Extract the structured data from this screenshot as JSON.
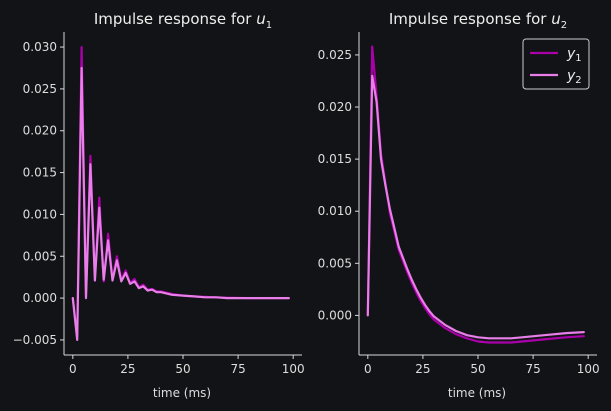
{
  "colors": {
    "y1": "#aa00aa",
    "y2": "#e87ee8",
    "background": "#121316",
    "axis": "#d8d8d8"
  },
  "chart_data": [
    {
      "type": "line",
      "title": "Impulse response for u1",
      "title_text": "Impulse response for ",
      "title_var": "u",
      "title_sub": "1",
      "xlabel": "time (ms)",
      "ylabel": "",
      "xlim": [
        -4,
        104
      ],
      "ylim": [
        -0.0068,
        0.0318
      ],
      "xticks": [
        0,
        25,
        50,
        75,
        100
      ],
      "xtick_labels": [
        "0",
        "25",
        "50",
        "75",
        "100"
      ],
      "yticks": [
        -0.005,
        0,
        0.005,
        0.01,
        0.015,
        0.02,
        0.025,
        0.03
      ],
      "ytick_labels": [
        "−0.005",
        "0.000",
        "0.005",
        "0.010",
        "0.015",
        "0.020",
        "0.025",
        "0.030"
      ],
      "grid": false,
      "legend": false,
      "series": [
        {
          "color_key": "y1",
          "x": [
            0,
            2,
            4,
            6,
            8,
            10,
            12,
            14,
            16,
            18,
            20,
            22,
            24,
            26,
            28,
            30,
            32,
            34,
            36,
            38,
            40,
            45,
            50,
            55,
            60,
            65,
            70,
            80,
            90,
            98
          ],
          "y": [
            0,
            -0.0045,
            0.03,
            0.0003,
            0.017,
            0.0023,
            0.012,
            0.002,
            0.0077,
            0.0022,
            0.005,
            0.0022,
            0.0033,
            0.0018,
            0.0023,
            0.0013,
            0.0016,
            0.001,
            0.0011,
            0.0008,
            0.0008,
            0.0005,
            0.0003,
            0.0002,
            0.00015,
            0.0001,
            5e-05,
            0,
            0,
            0
          ]
        },
        {
          "color_key": "y2",
          "x": [
            0,
            2,
            4,
            6,
            8,
            10,
            12,
            14,
            16,
            18,
            20,
            22,
            24,
            26,
            28,
            30,
            32,
            34,
            36,
            38,
            40,
            45,
            50,
            55,
            60,
            65,
            70,
            80,
            90,
            98
          ],
          "y": [
            0,
            -0.005,
            0.0275,
            0,
            0.016,
            0.0021,
            0.0108,
            0.0022,
            0.0069,
            0.0021,
            0.0045,
            0.002,
            0.003,
            0.0017,
            0.002,
            0.0012,
            0.0014,
            0.0009,
            0.001,
            0.0007,
            0.0007,
            0.0004,
            0.0003,
            0.0002,
            0.0001,
            0.0001,
            0,
            0,
            0,
            0
          ]
        }
      ]
    },
    {
      "type": "line",
      "title": "Impulse response for u2",
      "title_text": "Impulse response for ",
      "title_var": "u",
      "title_sub": "2",
      "xlabel": "time (ms)",
      "ylabel": "",
      "xlim": [
        -4,
        104
      ],
      "ylim": [
        -0.0038,
        0.0272
      ],
      "xticks": [
        0,
        25,
        50,
        75,
        100
      ],
      "xtick_labels": [
        "0",
        "25",
        "50",
        "75",
        "100"
      ],
      "yticks": [
        0,
        0.005,
        0.01,
        0.015,
        0.02,
        0.025
      ],
      "ytick_labels": [
        "0.000",
        "0.005",
        "0.010",
        "0.015",
        "0.020",
        "0.025"
      ],
      "grid": false,
      "legend": true,
      "legend_position": "top-right",
      "series": [
        {
          "name": "y1",
          "label_var": "y",
          "label_sub": "1",
          "color_key": "y1",
          "x": [
            0,
            2,
            4,
            6,
            8,
            10,
            12,
            14,
            16,
            18,
            20,
            22,
            24,
            26,
            28,
            30,
            35,
            40,
            45,
            50,
            55,
            60,
            65,
            70,
            80,
            90,
            98
          ],
          "y": [
            0,
            0.0258,
            0.021,
            0.0155,
            0.0127,
            0.0098,
            0.0081,
            0.0063,
            0.0052,
            0.0041,
            0.0031,
            0.0022,
            0.0014,
            0.0007,
            0.0001,
            -0.0004,
            -0.0012,
            -0.0018,
            -0.0022,
            -0.0025,
            -0.0026,
            -0.0026,
            -0.0026,
            -0.0025,
            -0.0023,
            -0.0021,
            -0.002
          ]
        },
        {
          "name": "y2",
          "label_var": "y",
          "label_sub": "2",
          "color_key": "y2",
          "x": [
            0,
            2,
            4,
            6,
            8,
            10,
            12,
            14,
            16,
            18,
            20,
            22,
            24,
            26,
            28,
            30,
            35,
            40,
            45,
            50,
            55,
            60,
            65,
            70,
            80,
            90,
            98
          ],
          "y": [
            0,
            0.023,
            0.0205,
            0.015,
            0.0125,
            0.0102,
            0.0084,
            0.0066,
            0.0055,
            0.0044,
            0.0034,
            0.0025,
            0.0017,
            0.001,
            0.0004,
            -0.0001,
            -0.0009,
            -0.0015,
            -0.0019,
            -0.0021,
            -0.0022,
            -0.0022,
            -0.0022,
            -0.0021,
            -0.0019,
            -0.0017,
            -0.0016
          ]
        }
      ]
    }
  ]
}
